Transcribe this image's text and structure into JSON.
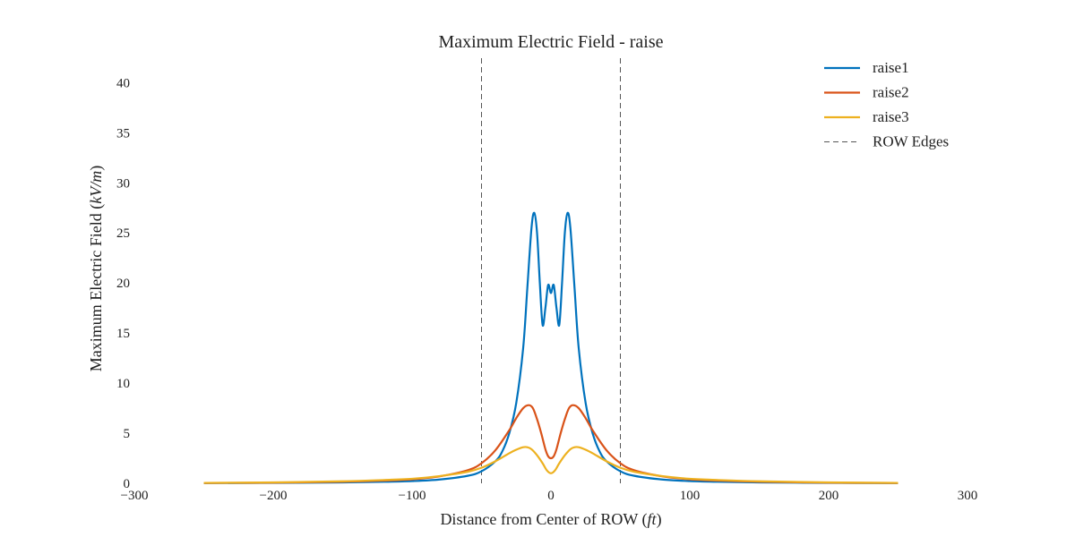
{
  "chart_data": {
    "type": "line",
    "title": "Maximum Electric Field - raise",
    "xlabel": "Distance from Center of ROW (ft)",
    "ylabel": "Maximum Electric Field (kV/m)",
    "xlim": [
      -300,
      300
    ],
    "ylim": [
      0,
      42
    ],
    "xticks": [
      "−300",
      "−200",
      "−100",
      "0",
      "100",
      "200",
      "300"
    ],
    "xtick_values": [
      -300,
      -200,
      -100,
      0,
      100,
      200,
      300
    ],
    "yticks": [
      "0",
      "5",
      "10",
      "15",
      "20",
      "25",
      "30",
      "35",
      "40"
    ],
    "ytick_values": [
      0,
      5,
      10,
      15,
      20,
      25,
      30,
      35,
      40
    ],
    "grid": false,
    "legend_position": "top-right",
    "series": [
      {
        "name": "raise1",
        "color": "#0072bd",
        "x": [
          -250,
          -200,
          -150,
          -120,
          -100,
          -80,
          -60,
          -50,
          -40,
          -35,
          -30,
          -25,
          -20,
          -17,
          -14,
          -12,
          -10,
          -8,
          -6,
          -4,
          -2,
          0,
          2,
          4,
          6,
          8,
          10,
          12,
          14,
          17,
          20,
          25,
          30,
          35,
          40,
          50,
          60,
          80,
          100,
          120,
          150,
          200,
          250
        ],
        "y": [
          0.02,
          0.04,
          0.09,
          0.15,
          0.22,
          0.38,
          0.75,
          1.2,
          2.2,
          3.2,
          5.0,
          8.0,
          13.5,
          19.5,
          25.5,
          27.0,
          25.0,
          20.0,
          15.8,
          17.5,
          19.8,
          19.0,
          19.8,
          17.5,
          15.8,
          20.0,
          25.0,
          27.0,
          25.5,
          19.5,
          13.5,
          8.0,
          5.0,
          3.2,
          2.2,
          1.2,
          0.75,
          0.38,
          0.22,
          0.15,
          0.09,
          0.04,
          0.02
        ]
      },
      {
        "name": "raise2",
        "color": "#d95319",
        "x": [
          -250,
          -200,
          -150,
          -120,
          -100,
          -80,
          -60,
          -50,
          -40,
          -30,
          -25,
          -20,
          -16,
          -13,
          -10,
          -7,
          -4,
          -2,
          0,
          2,
          4,
          7,
          10,
          13,
          16,
          20,
          25,
          30,
          40,
          50,
          60,
          80,
          100,
          120,
          150,
          200,
          250
        ],
        "y": [
          0.03,
          0.06,
          0.15,
          0.27,
          0.4,
          0.7,
          1.3,
          2.0,
          3.3,
          5.3,
          6.5,
          7.5,
          7.8,
          7.5,
          6.4,
          5.0,
          3.4,
          2.7,
          2.5,
          2.7,
          3.4,
          5.0,
          6.4,
          7.5,
          7.8,
          7.5,
          6.5,
          5.3,
          3.3,
          2.0,
          1.3,
          0.7,
          0.4,
          0.27,
          0.15,
          0.06,
          0.03
        ]
      },
      {
        "name": "raise3",
        "color": "#edb120",
        "x": [
          -250,
          -200,
          -150,
          -120,
          -100,
          -80,
          -60,
          -50,
          -40,
          -30,
          -25,
          -20,
          -17,
          -14,
          -10,
          -6,
          -3,
          0,
          3,
          6,
          10,
          14,
          17,
          20,
          25,
          30,
          40,
          50,
          60,
          80,
          100,
          120,
          150,
          200,
          250
        ],
        "y": [
          0.04,
          0.09,
          0.2,
          0.33,
          0.45,
          0.72,
          1.15,
          1.55,
          2.2,
          3.0,
          3.35,
          3.6,
          3.6,
          3.4,
          2.8,
          2.0,
          1.3,
          1.0,
          1.3,
          2.0,
          2.8,
          3.4,
          3.6,
          3.6,
          3.35,
          3.0,
          2.2,
          1.55,
          1.15,
          0.72,
          0.45,
          0.33,
          0.2,
          0.09,
          0.04
        ]
      }
    ],
    "reference_lines": {
      "name": "ROW Edges",
      "x": [
        -50,
        50
      ],
      "color": "#555555",
      "style": "dashed"
    }
  }
}
